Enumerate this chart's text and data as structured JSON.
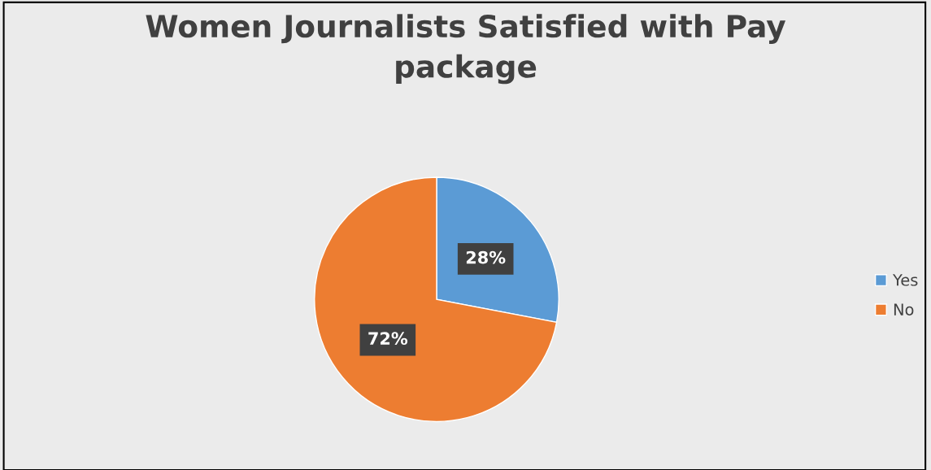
{
  "chart_data": {
    "type": "pie",
    "title": "Women Journalists Satisfied with Pay\npackage",
    "categories": [
      "Yes",
      "No"
    ],
    "values": [
      28,
      72
    ],
    "colors": [
      "#5b9bd5",
      "#ed7d31"
    ],
    "value_labels": [
      "28%",
      "72%"
    ],
    "legend": "right"
  }
}
